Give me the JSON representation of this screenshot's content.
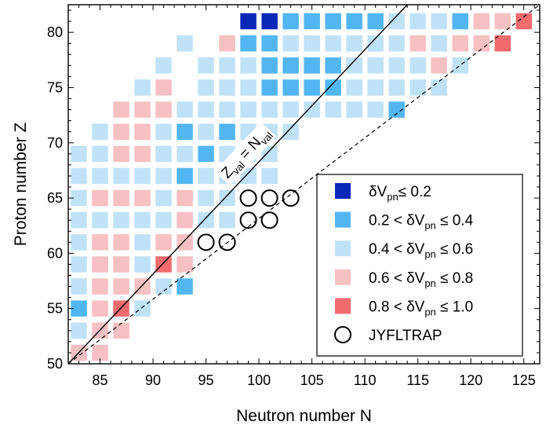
{
  "chart_data": {
    "type": "heatmap",
    "xlabel": "Neutron number N",
    "ylabel": "Proton number Z",
    "xlim": [
      82,
      126.5
    ],
    "ylim": [
      50,
      82.5
    ],
    "xticks": [
      85,
      90,
      95,
      100,
      105,
      110,
      115,
      120,
      125
    ],
    "yticks": [
      50,
      55,
      60,
      65,
      70,
      75,
      80
    ],
    "grid": false,
    "legend_position": "bottom-right",
    "categories": [
      {
        "id": "c1",
        "label": "δV<sub>pn</sub>≤ 0.2",
        "color": "#0a28b8"
      },
      {
        "id": "c2",
        "label": "0.2 < δV<sub>pn</sub> ≤ 0.4",
        "color": "#52b6f2"
      },
      {
        "id": "c3",
        "label": "0.4 < δV<sub>pn</sub> ≤ 0.6",
        "color": "#bfe2f8"
      },
      {
        "id": "c4",
        "label": "0.6 < δV<sub>pn</sub> ≤ 0.8",
        "color": "#f7c0c2"
      },
      {
        "id": "c5",
        "label": "0.8 < δV<sub>pn</sub> ≤ 1.0",
        "color": "#f46b6e"
      }
    ],
    "points": [
      [
        83,
        51,
        "c4"
      ],
      [
        85,
        51,
        "c4"
      ],
      [
        83,
        53,
        "c3"
      ],
      [
        85,
        53,
        "c4"
      ],
      [
        87,
        53,
        "c4"
      ],
      [
        83,
        55,
        "c2"
      ],
      [
        85,
        55,
        "c4"
      ],
      [
        87,
        55,
        "c5"
      ],
      [
        89,
        55,
        "c3"
      ],
      [
        83,
        57,
        "c3"
      ],
      [
        85,
        57,
        "c4"
      ],
      [
        87,
        57,
        "c4"
      ],
      [
        89,
        57,
        "c4"
      ],
      [
        91,
        57,
        "c3"
      ],
      [
        93,
        57,
        "c2"
      ],
      [
        83,
        59,
        "c3"
      ],
      [
        85,
        59,
        "c4"
      ],
      [
        87,
        59,
        "c4"
      ],
      [
        89,
        59,
        "c3"
      ],
      [
        91,
        59,
        "c5"
      ],
      [
        93,
        59,
        "c4"
      ],
      [
        83,
        61,
        "c3"
      ],
      [
        85,
        61,
        "c4"
      ],
      [
        87,
        61,
        "c4"
      ],
      [
        89,
        61,
        "c3"
      ],
      [
        91,
        61,
        "c4"
      ],
      [
        93,
        61,
        "c4"
      ],
      [
        83,
        63,
        "c3"
      ],
      [
        85,
        63,
        "c3"
      ],
      [
        87,
        63,
        "c3"
      ],
      [
        89,
        63,
        "c3"
      ],
      [
        91,
        63,
        "c3"
      ],
      [
        93,
        63,
        "c4"
      ],
      [
        95,
        63,
        "c3"
      ],
      [
        97,
        63,
        "c3"
      ],
      [
        83,
        65,
        "c3"
      ],
      [
        85,
        65,
        "c4"
      ],
      [
        87,
        65,
        "c4"
      ],
      [
        89,
        65,
        "c4"
      ],
      [
        91,
        65,
        "c3"
      ],
      [
        93,
        65,
        "c4"
      ],
      [
        95,
        65,
        "c3"
      ],
      [
        97,
        65,
        "c3"
      ],
      [
        83,
        67,
        "c3"
      ],
      [
        85,
        67,
        "c3"
      ],
      [
        87,
        67,
        "c3"
      ],
      [
        89,
        67,
        "c3"
      ],
      [
        91,
        67,
        "c3"
      ],
      [
        93,
        67,
        "c2"
      ],
      [
        95,
        67,
        "c3"
      ],
      [
        97,
        67,
        "c3"
      ],
      [
        99,
        67,
        "c3"
      ],
      [
        101,
        67,
        "c3"
      ],
      [
        83,
        69,
        "c3"
      ],
      [
        85,
        69,
        "c3"
      ],
      [
        87,
        69,
        "c4"
      ],
      [
        89,
        69,
        "c4"
      ],
      [
        91,
        69,
        "c3"
      ],
      [
        93,
        69,
        "c3"
      ],
      [
        95,
        69,
        "c2"
      ],
      [
        97,
        69,
        "c3"
      ],
      [
        99,
        69,
        "c3"
      ],
      [
        101,
        69,
        "c3"
      ],
      [
        85,
        71,
        "c3"
      ],
      [
        87,
        71,
        "c4"
      ],
      [
        89,
        71,
        "c4"
      ],
      [
        91,
        71,
        "c3"
      ],
      [
        93,
        71,
        "c2"
      ],
      [
        95,
        71,
        "c3"
      ],
      [
        97,
        71,
        "c2"
      ],
      [
        99,
        71,
        "c3"
      ],
      [
        101,
        71,
        "c3"
      ],
      [
        103,
        71,
        "c3"
      ],
      [
        87,
        73,
        "c4"
      ],
      [
        89,
        73,
        "c4"
      ],
      [
        91,
        73,
        "c4"
      ],
      [
        93,
        73,
        "c3"
      ],
      [
        95,
        73,
        "c3"
      ],
      [
        97,
        73,
        "c3"
      ],
      [
        99,
        73,
        "c3"
      ],
      [
        101,
        73,
        "c3"
      ],
      [
        103,
        73,
        "c3"
      ],
      [
        105,
        73,
        "c3"
      ],
      [
        107,
        73,
        "c3"
      ],
      [
        109,
        73,
        "c3"
      ],
      [
        111,
        73,
        "c3"
      ],
      [
        113,
        73,
        "c2"
      ],
      [
        89,
        75,
        "c3"
      ],
      [
        91,
        75,
        "c4"
      ],
      [
        95,
        75,
        "c3"
      ],
      [
        97,
        75,
        "c3"
      ],
      [
        99,
        75,
        "c3"
      ],
      [
        101,
        75,
        "c2"
      ],
      [
        103,
        75,
        "c2"
      ],
      [
        105,
        75,
        "c2"
      ],
      [
        107,
        75,
        "c2"
      ],
      [
        109,
        75,
        "c3"
      ],
      [
        111,
        75,
        "c3"
      ],
      [
        113,
        75,
        "c3"
      ],
      [
        115,
        75,
        "c3"
      ],
      [
        117,
        75,
        "c3"
      ],
      [
        91,
        77,
        "c3"
      ],
      [
        95,
        77,
        "c3"
      ],
      [
        97,
        77,
        "c3"
      ],
      [
        99,
        77,
        "c3"
      ],
      [
        101,
        77,
        "c2"
      ],
      [
        103,
        77,
        "c2"
      ],
      [
        105,
        77,
        "c2"
      ],
      [
        107,
        77,
        "c2"
      ],
      [
        109,
        77,
        "c3"
      ],
      [
        111,
        77,
        "c3"
      ],
      [
        113,
        77,
        "c3"
      ],
      [
        115,
        77,
        "c3"
      ],
      [
        117,
        77,
        "c4"
      ],
      [
        119,
        77,
        "c3"
      ],
      [
        93,
        79,
        "c3"
      ],
      [
        97,
        79,
        "c4"
      ],
      [
        99,
        79,
        "c2"
      ],
      [
        101,
        79,
        "c2"
      ],
      [
        103,
        79,
        "c3"
      ],
      [
        105,
        79,
        "c3"
      ],
      [
        107,
        79,
        "c3"
      ],
      [
        109,
        79,
        "c3"
      ],
      [
        111,
        79,
        "c3"
      ],
      [
        113,
        79,
        "c3"
      ],
      [
        115,
        79,
        "c4"
      ],
      [
        117,
        79,
        "c3"
      ],
      [
        119,
        79,
        "c4"
      ],
      [
        121,
        79,
        "c4"
      ],
      [
        123,
        79,
        "c5"
      ],
      [
        99,
        81,
        "c1"
      ],
      [
        101,
        81,
        "c1"
      ],
      [
        103,
        81,
        "c2"
      ],
      [
        105,
        81,
        "c2"
      ],
      [
        107,
        81,
        "c2"
      ],
      [
        109,
        81,
        "c2"
      ],
      [
        111,
        81,
        "c2"
      ],
      [
        113,
        81,
        "c3"
      ],
      [
        115,
        81,
        "c3"
      ],
      [
        117,
        81,
        "c3"
      ],
      [
        119,
        81,
        "c2"
      ],
      [
        121,
        81,
        "c4"
      ],
      [
        123,
        81,
        "c4"
      ],
      [
        125,
        81,
        "c5"
      ]
    ],
    "jyfltrap": {
      "label": "JYFLTRAP",
      "points": [
        [
          95,
          61
        ],
        [
          97,
          61
        ],
        [
          99,
          63
        ],
        [
          101,
          63
        ],
        [
          99,
          65
        ],
        [
          101,
          65
        ],
        [
          103,
          65
        ]
      ]
    },
    "lines": {
      "solid_label": "Z<sub>val</sub> = N<sub>val</sub>",
      "solid": [
        [
          82,
          50
        ],
        [
          114,
          82.5
        ]
      ],
      "dashed": [
        [
          82,
          50
        ],
        [
          126.5,
          82.5
        ]
      ]
    }
  }
}
